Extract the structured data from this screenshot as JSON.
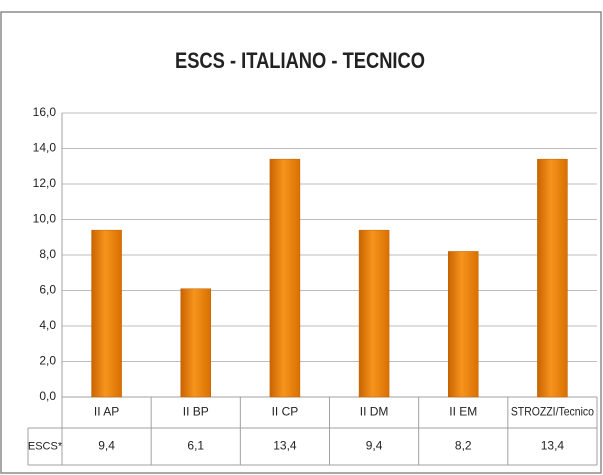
{
  "chart_data": {
    "type": "bar",
    "title": "ESCS - ITALIANO - TECNICO",
    "categories": [
      "II AP",
      "II BP",
      "II CP",
      "II DM",
      "II EM",
      "STROZZI/Tecnico"
    ],
    "series": [
      {
        "name": "ESCS*",
        "color": "#f7941d",
        "values": [
          9.4,
          6.1,
          13.4,
          9.4,
          8.2,
          13.4
        ],
        "value_labels": [
          "9,4",
          "6,1",
          "13,4",
          "9,4",
          "8,2",
          "13,4"
        ]
      }
    ],
    "ylim": [
      0,
      16
    ],
    "yticks": [
      {
        "value": 0,
        "label": "0,0"
      },
      {
        "value": 2,
        "label": "2,0"
      },
      {
        "value": 4,
        "label": "4,0"
      },
      {
        "value": 6,
        "label": "6,0"
      },
      {
        "value": 8,
        "label": "8,0"
      },
      {
        "value": 10,
        "label": "10,0"
      },
      {
        "value": 12,
        "label": "12,0"
      },
      {
        "value": 14,
        "label": "14,0"
      },
      {
        "value": 16,
        "label": "16,0"
      }
    ],
    "grid": true
  }
}
